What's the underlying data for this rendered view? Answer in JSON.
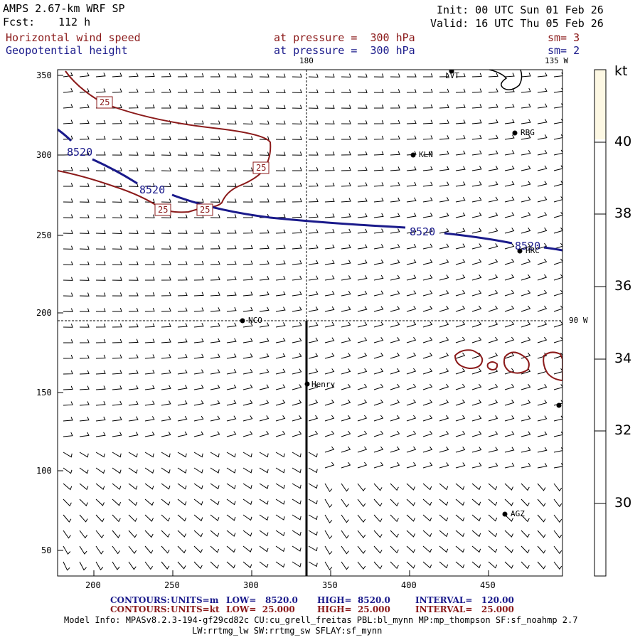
{
  "header": {
    "model": "AMPS 2.67-km WRF SP",
    "fcst_label": "Fcst:",
    "fcst_value": "112 h",
    "init": "Init: 00 UTC Sun 01 Feb 26",
    "valid": "Valid: 16 UTC Thu 05 Feb 26"
  },
  "fields": [
    {
      "name": "Horizontal wind speed",
      "level": "at pressure =  300 hPa",
      "smooth": "sm= 3",
      "color": "#8b1a1a"
    },
    {
      "name": "Geopotential height",
      "level": "at pressure =  300 hPa",
      "smooth": "sm= 2",
      "color": "#1a1a8b"
    }
  ],
  "map": {
    "x_ticks": [
      "200",
      "250",
      "300",
      "350",
      "400",
      "450"
    ],
    "y_ticks": [
      "350",
      "300",
      "250",
      "200",
      "150",
      "100",
      "50"
    ],
    "lon_labels": {
      "top_meridian": "180",
      "top_right": "135 W",
      "right": "90 W"
    },
    "contour_labels": {
      "height": "8520",
      "wind": "25"
    },
    "stations": [
      "LVT",
      "RBG",
      "KLN",
      "HRC",
      "NCO",
      "Henry",
      "AGZ"
    ]
  },
  "colorbar": {
    "unit": "kt",
    "ticks": [
      "40",
      "38",
      "36",
      "34",
      "32",
      "30"
    ],
    "fill_color": "#fdf8e3"
  },
  "footer": {
    "line1": {
      "label": "CONTOURS:",
      "units": "UNITS=m",
      "low": "LOW=   8520.0",
      "high": "HIGH=  8520.0",
      "interval": "INTERVAL=   120.00"
    },
    "line2": {
      "label": "CONTOURS:",
      "units": "UNITS=kt",
      "low": "LOW=  25.000",
      "high": "HIGH=  25.000",
      "interval": "INTERVAL=   25.000"
    },
    "model_info": "Model Info: MPASv8.2.3-194-gf29cd82c CU:cu_grell_freitas PBL:bl_mynn MP:mp_thompson SF:sf_noahmp 2.7",
    "model_info2": "LW:rrtmg_lw SW:rrtmg_sw SFLAY:sf_mynn"
  }
}
